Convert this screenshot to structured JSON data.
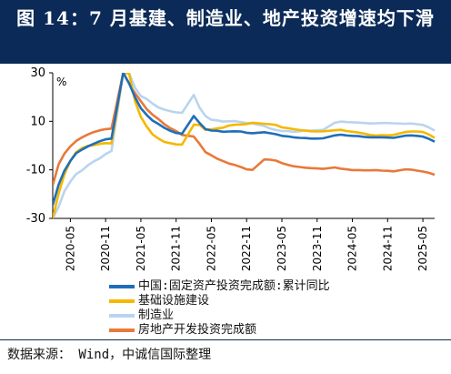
{
  "header": {
    "title": "图 14：7 月基建、制造业、地产投资增速均下滑"
  },
  "chart_data": {
    "type": "line",
    "unit_label": "%",
    "ylim": [
      -30,
      30
    ],
    "yticks": [
      "30",
      "10",
      "-10",
      "-30"
    ],
    "ytick_values": [
      30,
      10,
      -10,
      -30
    ],
    "xtick_labels": [
      "2020-05",
      "2020-11",
      "2021-05",
      "2021-11",
      "2022-05",
      "2022-11",
      "2023-05",
      "2023-11",
      "2024-05",
      "2024-11",
      "2025-05"
    ],
    "x": [
      "2020-02",
      "2020-03",
      "2020-04",
      "2020-05",
      "2020-06",
      "2020-07",
      "2020-08",
      "2020-09",
      "2020-10",
      "2020-11",
      "2020-12",
      "2021-02",
      "2021-03",
      "2021-04",
      "2021-05",
      "2021-06",
      "2021-07",
      "2021-08",
      "2021-09",
      "2021-10",
      "2021-11",
      "2021-12",
      "2022-02",
      "2022-03",
      "2022-04",
      "2022-05",
      "2022-06",
      "2022-07",
      "2022-08",
      "2022-09",
      "2022-10",
      "2022-11",
      "2022-12",
      "2023-02",
      "2023-03",
      "2023-04",
      "2023-05",
      "2023-06",
      "2023-07",
      "2023-08",
      "2023-09",
      "2023-10",
      "2023-11",
      "2023-12",
      "2024-02",
      "2024-03",
      "2024-04",
      "2024-05",
      "2024-06",
      "2024-07",
      "2024-08",
      "2024-09",
      "2024-10",
      "2024-11",
      "2024-12",
      "2025-02",
      "2025-03",
      "2025-04",
      "2025-05",
      "2025-06",
      "2025-07"
    ],
    "series": [
      {
        "name": "中国:固定资产投资完成额:累计同比",
        "color": "#1f6fb8",
        "values": [
          -24.5,
          -16.1,
          -10.3,
          -6.3,
          -3.1,
          -1.6,
          -0.3,
          0.8,
          1.8,
          2.6,
          2.9,
          35.0,
          25.6,
          19.9,
          15.4,
          12.6,
          10.3,
          8.9,
          7.3,
          6.1,
          5.2,
          4.9,
          12.2,
          9.3,
          6.8,
          6.2,
          6.1,
          5.7,
          5.8,
          5.9,
          5.8,
          5.3,
          5.1,
          5.5,
          5.1,
          4.7,
          4.0,
          3.8,
          3.4,
          3.2,
          3.1,
          2.9,
          2.9,
          3.0,
          4.2,
          4.5,
          4.2,
          4.0,
          3.9,
          3.6,
          3.4,
          3.4,
          3.4,
          3.3,
          3.2,
          4.1,
          4.2,
          4.0,
          3.7,
          2.8,
          1.6
        ]
      },
      {
        "name": "基础设施建设",
        "color": "#f5b800",
        "values": [
          -30.3,
          -19.7,
          -11.8,
          -6.3,
          -2.7,
          -1.0,
          -0.1,
          0.2,
          0.7,
          1.0,
          0.9,
          36.6,
          29.7,
          18.4,
          11.8,
          7.8,
          4.6,
          2.9,
          1.5,
          1.0,
          0.5,
          0.4,
          8.6,
          8.5,
          6.5,
          6.7,
          7.1,
          7.4,
          8.3,
          8.6,
          8.7,
          8.9,
          9.4,
          9.0,
          8.8,
          8.5,
          7.5,
          7.2,
          6.8,
          6.4,
          6.2,
          5.9,
          5.8,
          5.9,
          6.3,
          6.5,
          6.0,
          5.7,
          5.4,
          4.9,
          4.4,
          4.1,
          4.3,
          4.2,
          4.4,
          5.6,
          5.8,
          5.8,
          5.6,
          4.6,
          3.2
        ]
      },
      {
        "name": "制造业",
        "color": "#b9d4ef",
        "values": [
          -31.5,
          -25.2,
          -18.8,
          -14.8,
          -11.7,
          -10.2,
          -8.1,
          -6.5,
          -5.3,
          -3.5,
          -2.2,
          37.3,
          29.8,
          23.8,
          20.4,
          19.2,
          17.3,
          15.7,
          14.8,
          14.2,
          13.7,
          13.5,
          20.9,
          15.6,
          12.2,
          10.6,
          10.4,
          9.9,
          10.0,
          10.1,
          9.7,
          9.3,
          9.1,
          8.1,
          7.0,
          6.4,
          6.0,
          6.0,
          5.7,
          5.9,
          6.2,
          6.2,
          6.3,
          6.5,
          9.4,
          9.9,
          9.7,
          9.6,
          9.5,
          9.3,
          9.1,
          9.2,
          9.3,
          9.3,
          9.2,
          9.0,
          9.1,
          8.8,
          8.5,
          7.5,
          6.2
        ]
      },
      {
        "name": "房地产开发投资完成额",
        "color": "#e8793a",
        "values": [
          -16.3,
          -7.7,
          -3.3,
          -0.3,
          1.9,
          3.4,
          4.6,
          5.6,
          6.3,
          6.8,
          7.0,
          38.3,
          25.6,
          21.6,
          18.3,
          15.0,
          12.7,
          10.9,
          8.8,
          7.2,
          6.0,
          4.4,
          3.7,
          0.7,
          -2.7,
          -4.0,
          -5.4,
          -6.4,
          -7.4,
          -8.0,
          -8.8,
          -9.8,
          -10.0,
          -5.7,
          -5.8,
          -6.2,
          -7.2,
          -7.9,
          -8.5,
          -8.8,
          -9.1,
          -9.3,
          -9.4,
          -9.6,
          -9.0,
          -9.5,
          -9.8,
          -10.1,
          -10.1,
          -10.2,
          -10.2,
          -10.1,
          -10.3,
          -10.4,
          -10.6,
          -9.8,
          -9.9,
          -10.3,
          -10.7,
          -11.2,
          -12.0
        ]
      }
    ],
    "legend_position": "bottom"
  },
  "footer": {
    "source": "数据来源： Wind，中诚信国际整理"
  }
}
